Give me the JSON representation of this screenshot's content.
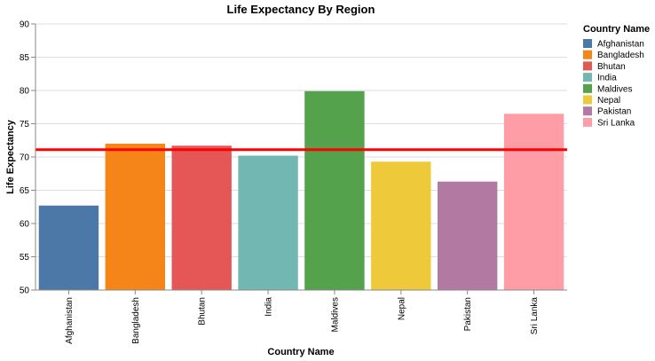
{
  "chart_data": {
    "type": "bar",
    "title": "Life Expectancy By Region",
    "xlabel": "Country Name",
    "ylabel": "Life Expectancy",
    "ylim": [
      50,
      90
    ],
    "yticks": [
      50,
      55,
      60,
      65,
      70,
      75,
      80,
      85,
      90
    ],
    "grid": true,
    "categories": [
      "Afghanistan",
      "Bangladesh",
      "Bhutan",
      "India",
      "Maldives",
      "Nepal",
      "Pakistan",
      "Sri Lanka"
    ],
    "values": [
      62.7,
      72.0,
      71.7,
      70.2,
      79.9,
      69.3,
      66.3,
      76.5
    ],
    "colors": [
      "#4c78a8",
      "#f58518",
      "#e45756",
      "#72b7b2",
      "#54a24b",
      "#eeca3b",
      "#b279a2",
      "#ff9da6"
    ],
    "reference_line": {
      "value": 71.1,
      "color": "#ff0000"
    },
    "legend": {
      "title": "Country Name",
      "position": "right",
      "entries": [
        "Afghanistan",
        "Bangladesh",
        "Bhutan",
        "India",
        "Maldives",
        "Nepal",
        "Pakistan",
        "Sri Lanka"
      ]
    }
  }
}
